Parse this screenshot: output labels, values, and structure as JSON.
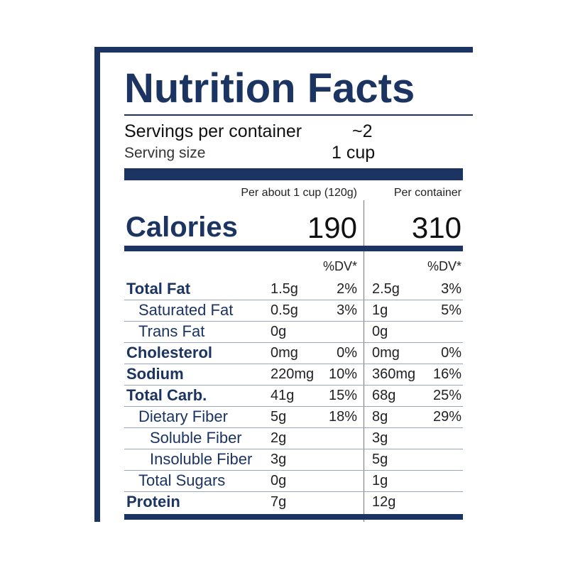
{
  "header": {
    "title": "Nutrition Facts",
    "servings_label": "Servings per container",
    "servings_value": "~2",
    "serving_size_label": "Serving size",
    "serving_size_value": "1 cup"
  },
  "columns": {
    "per_serving": "Per about 1 cup (120g)",
    "per_container": "Per container",
    "dv_header": "%DV*"
  },
  "calories": {
    "label": "Calories",
    "per_serving": "190",
    "per_container": "310"
  },
  "rows": [
    {
      "name": "Total Fat",
      "bold": true,
      "indent": 0,
      "amount1": "1.5g",
      "dv1": "2%",
      "amount2": "2.5g",
      "dv2": "3%"
    },
    {
      "name": "Saturated Fat",
      "bold": false,
      "indent": 1,
      "amount1": "0.5g",
      "dv1": "3%",
      "amount2": "1g",
      "dv2": "5%"
    },
    {
      "name": "Trans Fat",
      "bold": false,
      "indent": 1,
      "amount1": "0g",
      "dv1": null,
      "amount2": "0g",
      "dv2": null
    },
    {
      "name": "Cholesterol",
      "bold": true,
      "indent": 0,
      "amount1": "0mg",
      "dv1": "0%",
      "amount2": "0mg",
      "dv2": "0%"
    },
    {
      "name": "Sodium",
      "bold": true,
      "indent": 0,
      "amount1": "220mg",
      "dv1": "10%",
      "amount2": "360mg",
      "dv2": "16%"
    },
    {
      "name": "Total Carb.",
      "bold": true,
      "indent": 0,
      "amount1": "41g",
      "dv1": "15%",
      "amount2": "68g",
      "dv2": "25%"
    },
    {
      "name": "Dietary Fiber",
      "bold": false,
      "indent": 1,
      "amount1": "5g",
      "dv1": "18%",
      "amount2": "8g",
      "dv2": "29%"
    },
    {
      "name": "Soluble Fiber",
      "bold": false,
      "indent": 2,
      "amount1": "2g",
      "dv1": null,
      "amount2": "3g",
      "dv2": null
    },
    {
      "name": "Insoluble Fiber",
      "bold": false,
      "indent": 2,
      "amount1": "3g",
      "dv1": null,
      "amount2": "5g",
      "dv2": null
    },
    {
      "name": "Total Sugars",
      "bold": false,
      "indent": 1,
      "amount1": "0g",
      "dv1": null,
      "amount2": "1g",
      "dv2": null
    },
    {
      "name": "Protein",
      "bold": true,
      "indent": 0,
      "amount1": "7g",
      "dv1": null,
      "amount2": "12g",
      "dv2": null
    }
  ]
}
